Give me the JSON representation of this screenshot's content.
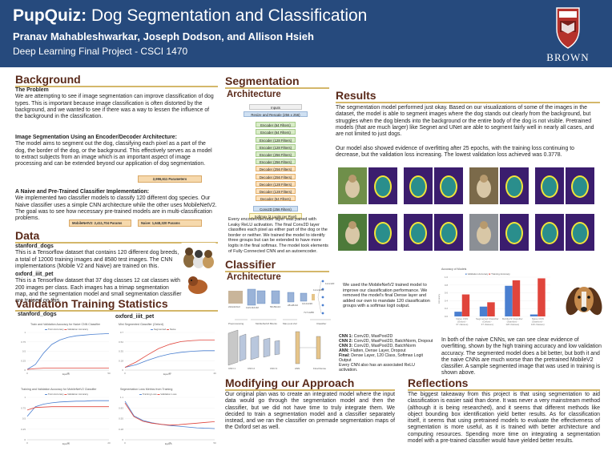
{
  "header": {
    "title_bold": "PupQuiz:",
    "title_rest": " Dog Segmentation and Classification",
    "authors": "Pranav Mahableshwarkar, Joseph Dodson, and Allison Hsieh",
    "course": "Deep Learning Final Project - CSCI 1470",
    "logo_text": "BROWN"
  },
  "background": {
    "heading": "Background",
    "problem_heading": "The Problem",
    "problem_text": "We are attempting to see if image segmentation can improve classification of dog types. This is important because image classification is often distorted by the background, and we wanted to see if there was a way to lessen the influence of the background in the classification.",
    "seg_heading": "Image Segmentation Using an Encoder/Decoder Architecture:",
    "seg_text": "The model aims to segment out the dog, classifying each pixel as a part of the dog, the border of the dog, or the background. This effectively serves as a model to extract subjects from an image which is an important aspect of image processing and can be extended beyond our application of dog segmentation.",
    "seg_params": "2,996,611 Parameters",
    "cls_heading": "A Naive and Pre-Trained Classifier Implementation:",
    "cls_text": "We implemented two classifier models to classify 120 different dog species. Our Naive classifier uses a simple CNN architecture while the other uses MobileNetV2. The goal was to see how necessary pre-trained models are in multi-classification problems.",
    "mobilenet_params": "MobileNetV2: 2,411,704 Params",
    "naive_params": "Naive: 1,648,320 Params"
  },
  "data": {
    "heading": "Data",
    "d1_heading": "stanford_dogs",
    "d1_text": "This is a Tensorflow dataset that contains 120 different dog breeds, a total of 12000 training images and 8580 test images. The CNN implementations (Mobile V2 and Naive) are trained on this.",
    "d2_heading": "oxford_iiit_pet",
    "d2_text": "This is a Tensorflow dataset that 37 dog classes 12 cat classes with 200 images per class. Each images has a trimap segmentation map, and the segmentation model and small segmentation classifier are trained on this."
  },
  "validation": {
    "heading": "Validation Training Statistics",
    "col1": "stanford_dogs",
    "col2": "oxford_iiit_pet",
    "c1_title": "Train and Validation Accuracy for Naive CNN Classifier",
    "c1_legend": [
      "Train Accuracy",
      "Validation Accuracy"
    ],
    "c2_title": "Mini Segmented Classifier (Oxford)",
    "c2_legend": [
      "Segmented",
      "Naive"
    ],
    "c3_title": "Training and Validation Accuracy for MobileNetV2 Classifier",
    "c3_legend": [
      "Train Accuracy",
      "Validation Accuracy"
    ],
    "c4_title": "Segmentation Loss Metrics from Training",
    "c4_legend": [
      "Training Loss",
      "Validation Loss"
    ],
    "xlabel": "Epoch"
  },
  "segmentation": {
    "heading": "Segmentation",
    "arch_heading": "Architecture",
    "blocks": [
      {
        "label": "Inputs",
        "kind": "in"
      },
      {
        "label": "Resize and Rescale (256 x 256)",
        "kind": "rs"
      },
      {
        "label": "Encoder (64 Filters)",
        "kind": "en"
      },
      {
        "label": "Encoder (64 Filters)",
        "kind": "en"
      },
      {
        "label": "Encoder (128 Filters)",
        "kind": "en"
      },
      {
        "label": "Encoder (128 Filters)",
        "kind": "en"
      },
      {
        "label": "Encoder (256 Filters)",
        "kind": "en"
      },
      {
        "label": "Encoder (256 Filters)",
        "kind": "en"
      },
      {
        "label": "Decoder (256 Filters)",
        "kind": "de"
      },
      {
        "label": "Decoder (256 Filters)",
        "kind": "de"
      },
      {
        "label": "Decoder (128 Filters)",
        "kind": "de"
      },
      {
        "label": "Decoder (128 Filters)",
        "kind": "de"
      },
      {
        "label": "Decoder (64 Filters)",
        "kind": "de"
      },
      {
        "label": "Conv2D (256 Filters)",
        "kind": "cv"
      },
      {
        "label": "Softmax (3 Logits per Pixel)",
        "kind": "sm"
      }
    ],
    "note": "Every encoder/decoder layer was paired with Leaky ReLU activation. The final Conv2D layer classifies each pixel as either part of the dog or the border or neither. We trained the model to identify three groups but can be extended to have more logits in the final softmax. The model took elements of Fully Connected CNN and an autoencoder."
  },
  "classifier": {
    "heading": "Classifier",
    "arch_heading": "Architecture",
    "note": "We used the MobileNetV2 trained model to improve our classification performance. We removed the model's final Dense layer and added our own to mandate 120 classification groups with a softmax logit output.",
    "mobilenet_labels": [
      "224x224x3",
      "112x112x32",
      "56x56x24",
      "28x28x32",
      "14x14x96",
      "7x7x1280",
      "1x1x1280",
      "1x1x120"
    ],
    "stage_labels": [
      "Preprocessing",
      "MobileNetV2 Blocks",
      "Max pool 2x2",
      "Classifier"
    ],
    "naive_labels": [
      "CNN 1",
      "CNN 2",
      "CNN 3",
      "ANN",
      "Final Dense"
    ],
    "layers_text": [
      {
        "k": "CNN 1:",
        "v": "Conv2D, MaxPool2D"
      },
      {
        "k": "CNN 2:",
        "v": "Conv2D, MaxPool2D, BatchNorm, Dropout"
      },
      {
        "k": "CNN 3:",
        "v": "Conv2D, MaxPool2D, BatchNorm"
      },
      {
        "k": "ANN:",
        "v": "Flatten, Dense Layer, Dropout"
      },
      {
        "k": "Final:",
        "v": "Dense Layer, 120 Class, Softmax Logit Output"
      }
    ],
    "layers_note": "Every CNN also has an associated ReLU activation."
  },
  "results": {
    "heading": "Results",
    "p1": "The segmentation model performed just okay. Based on our visualizations of some of the images in the dataset, the model is able to segment images where the dog stands out clearly from the background, but struggles when the dog blends into the background or the entire body of the dog is not visible. Pretrained models (that are much larger) like Segnet and UNet are able to segment fairly well in nearly all cases, and are not limited to just dogs.",
    "p2": "Our model also showed evidence of overfitting after 25 epochs, with the training loss continuing to decrease, but the validation loss increasing. The lowest validation loss achieved was 0.3778.",
    "acc_chart_title": "Accuracy of Models",
    "acc_legend": [
      "Validation Accuracy",
      "Training Accuracy"
    ],
    "p3": "In both of the naive CNNs, we can see clear evidence of overfitting, shown by the high training accuracy and low validation accuracy. The segmented model does a bit better, but both it and the naive CNNs are much worse than the pretrained MobileV2 classifier. A sample segmented image that was used in training is shown above."
  },
  "modifying": {
    "heading": "Modifying our Approach",
    "text": "Our original plan was to create an integrated model where the input data would go through the segmentation model and then the classifier, but we did not have time to truly integrate them. We decided to train a segmentation model and a classifier separately instead, and we ran the classifier on premade segmentation maps of the Oxford set as well."
  },
  "reflections": {
    "heading": "Reflections",
    "text": "The biggest takeaway from this project is that using segmentation to aid classification is easier said than done. It was never a very mainstream method (although it is being researched), and it seems that different methods like object bounding box identification yield better results. As for classification itself, it seems that using pretrained models to evaluate the effectiveness of segmentation is more useful, as it is trained with better architecture and computing resources. Spending more time on integrating a segmentation model with a pre-trained classifier would have yielded better results."
  },
  "colors": {
    "header_bg": "#264a7d",
    "heading": "#5a2a1a",
    "underline": "#d4b76a",
    "seg_purple": "#3b1d6e",
    "seg_yellow": "#f1e53a",
    "seg_teal": "#2a8e8c",
    "bar_blue": "#4a7fd0",
    "bar_red": "#e0453c"
  },
  "chart_data": [
    {
      "type": "bar",
      "title": "Accuracy of Models",
      "categories": [
        "Naive CNN (Oxford - 37 classes)",
        "Segmented Classifier (Oxford - 37 classes)",
        "MobileV2 Classifier (Stanford - 120 classes)",
        "Naive CNN (Stanford - 120 classes)"
      ],
      "series": [
        {
          "name": "Validation Accuracy",
          "values": [
            0.12,
            0.25,
            0.78,
            0.05
          ]
        },
        {
          "name": "Training Accuracy",
          "values": [
            0.56,
            0.36,
            0.92,
            0.97
          ]
        }
      ],
      "ylabel": "Accuracy",
      "ylim": [
        0,
        1
      ]
    },
    {
      "type": "line",
      "title": "Train and Validation Accuracy for Naive CNN Classifier",
      "x": [
        0,
        5,
        10,
        15,
        20,
        25,
        30,
        35,
        40,
        45,
        50
      ],
      "series": [
        {
          "name": "Train Accuracy",
          "values": [
            0.02,
            0.15,
            0.45,
            0.68,
            0.8,
            0.87,
            0.91,
            0.93,
            0.95,
            0.96,
            0.97
          ]
        },
        {
          "name": "Validation Accuracy",
          "values": [
            0.02,
            0.04,
            0.05,
            0.05,
            0.05,
            0.05,
            0.05,
            0.05,
            0.05,
            0.05,
            0.05
          ]
        }
      ],
      "xlabel": "Epoch",
      "ylim": [
        0,
        1
      ]
    },
    {
      "type": "line",
      "title": "Mini Segmented Classifier (Oxford)",
      "x": [
        0,
        5,
        10,
        15,
        20,
        25,
        30,
        35,
        40
      ],
      "series": [
        {
          "name": "Segmented",
          "values": [
            0.05,
            0.1,
            0.18,
            0.25,
            0.3,
            0.33,
            0.35,
            0.36,
            0.36
          ]
        },
        {
          "name": "Naive",
          "values": [
            0.05,
            0.15,
            0.28,
            0.4,
            0.48,
            0.53,
            0.55,
            0.56,
            0.56
          ]
        }
      ],
      "xlabel": "Epoch",
      "ylim": [
        0,
        0.7
      ]
    },
    {
      "type": "line",
      "title": "Training and Validation Accuracy for MobileNetV2 Classifier",
      "x": [
        0,
        2,
        4,
        6,
        8,
        10,
        12,
        14,
        16,
        18,
        20
      ],
      "series": [
        {
          "name": "Train Accuracy",
          "values": [
            0.55,
            0.78,
            0.84,
            0.87,
            0.89,
            0.9,
            0.91,
            0.91,
            0.92,
            0.92,
            0.92
          ]
        },
        {
          "name": "Validation Accuracy",
          "values": [
            0.7,
            0.76,
            0.77,
            0.78,
            0.78,
            0.78,
            0.78,
            0.78,
            0.78,
            0.78,
            0.78
          ]
        }
      ],
      "xlabel": "Epoch",
      "ylim": [
        0,
        1
      ]
    },
    {
      "type": "line",
      "title": "Segmentation Loss Metrics from Training",
      "x": [
        0,
        5,
        10,
        15,
        20,
        25,
        30,
        35,
        40,
        45,
        50
      ],
      "series": [
        {
          "name": "Training Loss",
          "values": [
            1.0,
            0.62,
            0.5,
            0.44,
            0.4,
            0.37,
            0.35,
            0.33,
            0.31,
            0.3,
            0.29
          ]
        },
        {
          "name": "Validation Loss",
          "values": [
            0.95,
            0.6,
            0.48,
            0.43,
            0.4,
            0.38,
            0.39,
            0.41,
            0.43,
            0.45,
            0.47
          ]
        }
      ],
      "xlabel": "Epoch",
      "ylim": [
        0,
        1.1
      ]
    }
  ]
}
